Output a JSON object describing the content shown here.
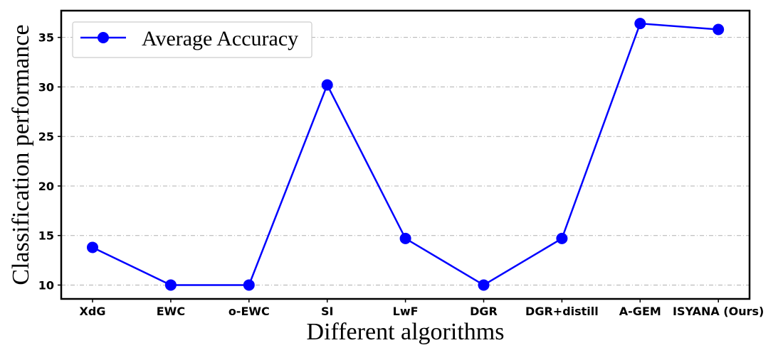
{
  "chart_data": {
    "type": "line",
    "categories": [
      "XdG",
      "EWC",
      "o-EWC",
      "SI",
      "LwF",
      "DGR",
      "DGR+distill",
      "A-GEM",
      "ISYANA (Ours)"
    ],
    "series": [
      {
        "name": "Average Accuracy",
        "values": [
          13.8,
          10.0,
          10.0,
          30.2,
          14.7,
          10.0,
          14.7,
          36.4,
          35.8
        ],
        "color": "#0000ff"
      }
    ],
    "xlabel": "Different algorithms",
    "ylabel": "Classification performance",
    "ylim": [
      8.6,
      37.7
    ],
    "yticks": [
      10,
      15,
      20,
      25,
      30,
      35
    ],
    "grid": "horizontal dash-dot",
    "legend": "top-left"
  }
}
